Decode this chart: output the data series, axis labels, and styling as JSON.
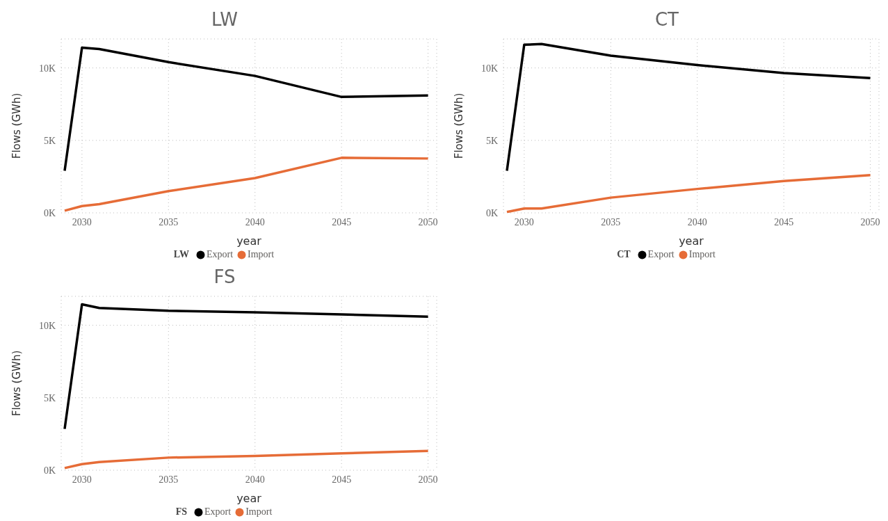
{
  "chart_data": [
    {
      "type": "line",
      "title": "LW",
      "xlabel": "year",
      "ylabel": "Flows (GWh)",
      "legend_title": "LW",
      "legend": "bottom",
      "grid": true,
      "x": [
        2029,
        2030,
        2031,
        2035,
        2040,
        2045,
        2050
      ],
      "xlim": [
        2028.8,
        2050.5
      ],
      "xticks": [
        2030,
        2035,
        2040,
        2045,
        2050
      ],
      "ylim": [
        0,
        12000
      ],
      "yticks": [
        {
          "value": 0,
          "label": "0K"
        },
        {
          "value": 5000,
          "label": "5K"
        },
        {
          "value": 10000,
          "label": "10K"
        }
      ],
      "series": [
        {
          "name": "Export",
          "color": "#000000",
          "values": [
            2900,
            11400,
            11300,
            10400,
            9450,
            8000,
            8100
          ]
        },
        {
          "name": "Import",
          "color": "#e66c37",
          "values": [
            150,
            470,
            600,
            1500,
            2400,
            3800,
            3750
          ]
        }
      ]
    },
    {
      "type": "line",
      "title": "CT",
      "xlabel": "year",
      "ylabel": "Flows (GWh)",
      "legend_title": "CT",
      "legend": "bottom",
      "grid": true,
      "x": [
        2029,
        2030,
        2031,
        2035,
        2040,
        2045,
        2050
      ],
      "xlim": [
        2028.8,
        2050.5
      ],
      "xticks": [
        2030,
        2035,
        2040,
        2045,
        2050
      ],
      "ylim": [
        0,
        12000
      ],
      "yticks": [
        {
          "value": 0,
          "label": "0K"
        },
        {
          "value": 5000,
          "label": "5K"
        },
        {
          "value": 10000,
          "label": "10K"
        }
      ],
      "series": [
        {
          "name": "Export",
          "color": "#000000",
          "values": [
            2900,
            11600,
            11650,
            10850,
            10200,
            9650,
            9300
          ]
        },
        {
          "name": "Import",
          "color": "#e66c37",
          "values": [
            60,
            300,
            300,
            1050,
            1650,
            2200,
            2600
          ]
        }
      ]
    },
    {
      "type": "line",
      "title": "FS",
      "xlabel": "year",
      "ylabel": "Flows (GWh)",
      "legend_title": "FS",
      "legend": "bottom",
      "grid": true,
      "x": [
        2029,
        2030,
        2031,
        2035,
        2040,
        2045,
        2050
      ],
      "xlim": [
        2028.8,
        2050.5
      ],
      "xticks": [
        2030,
        2035,
        2040,
        2045,
        2050
      ],
      "ylim": [
        0,
        12000
      ],
      "yticks": [
        {
          "value": 0,
          "label": "0K"
        },
        {
          "value": 5000,
          "label": "5K"
        },
        {
          "value": 10000,
          "label": "10K"
        }
      ],
      "series": [
        {
          "name": "Export",
          "color": "#000000",
          "values": [
            2850,
            11450,
            11200,
            11000,
            10900,
            10750,
            10600
          ]
        },
        {
          "name": "Import",
          "color": "#e66c37",
          "values": [
            150,
            420,
            560,
            870,
            980,
            1160,
            1330
          ]
        }
      ]
    }
  ]
}
